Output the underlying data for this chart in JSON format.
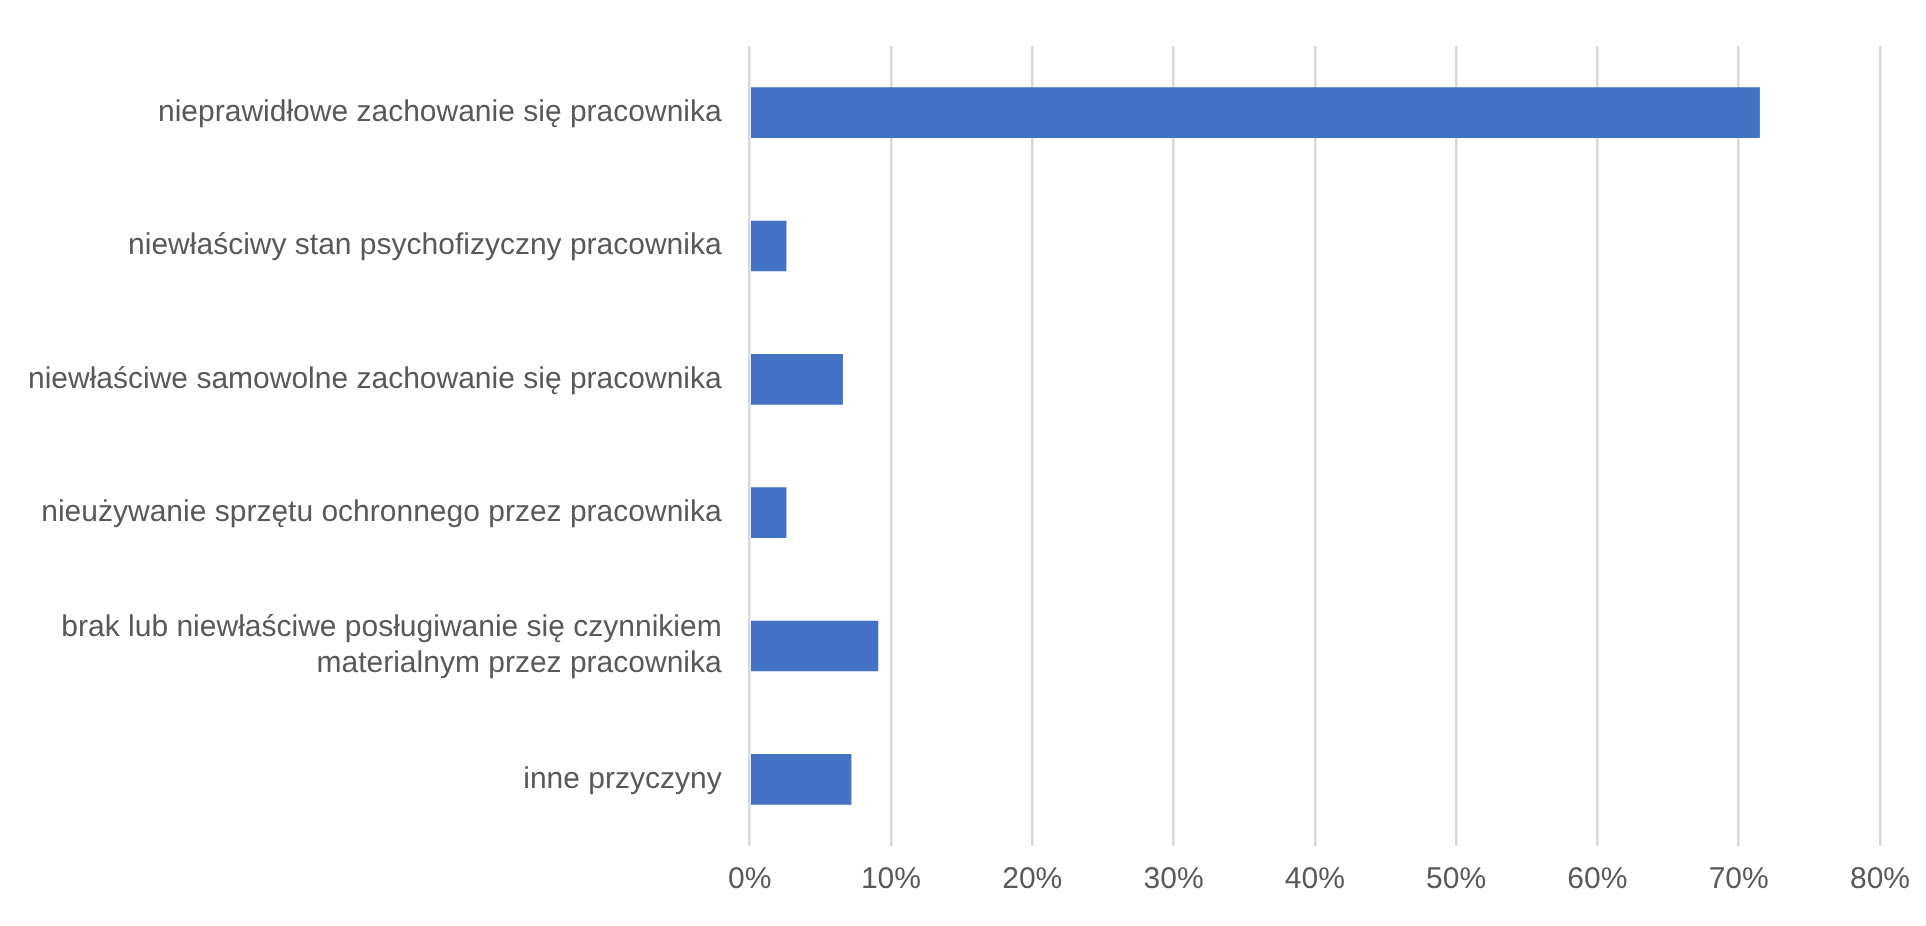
{
  "chart_data": {
    "type": "bar",
    "orientation": "horizontal",
    "categories": [
      "nieprawidłowe zachowanie się pracownika",
      "niewłaściwy stan psychofizyczny pracownika",
      "niewłaściwe samowolne zachowanie się pracownika",
      "nieużywanie sprzętu ochronnego przez pracownika",
      "brak lub niewłaściwe posługiwanie się czynnikiem materialnym przez pracownika",
      "inne przyczyny"
    ],
    "values": [
      71.5,
      2.6,
      6.6,
      2.6,
      9.1,
      7.2
    ],
    "color": "#4472c4",
    "xlim": [
      0,
      80
    ],
    "xticks": [
      {
        "value": 0,
        "label": "0%"
      },
      {
        "value": 10,
        "label": "10%"
      },
      {
        "value": 20,
        "label": "20%"
      },
      {
        "value": 30,
        "label": "30%"
      },
      {
        "value": 40,
        "label": "40%"
      },
      {
        "value": 50,
        "label": "50%"
      },
      {
        "value": 60,
        "label": "60%"
      },
      {
        "value": 70,
        "label": "70%"
      },
      {
        "value": 80,
        "label": "80%"
      }
    ],
    "grid": "x",
    "legend": false
  }
}
